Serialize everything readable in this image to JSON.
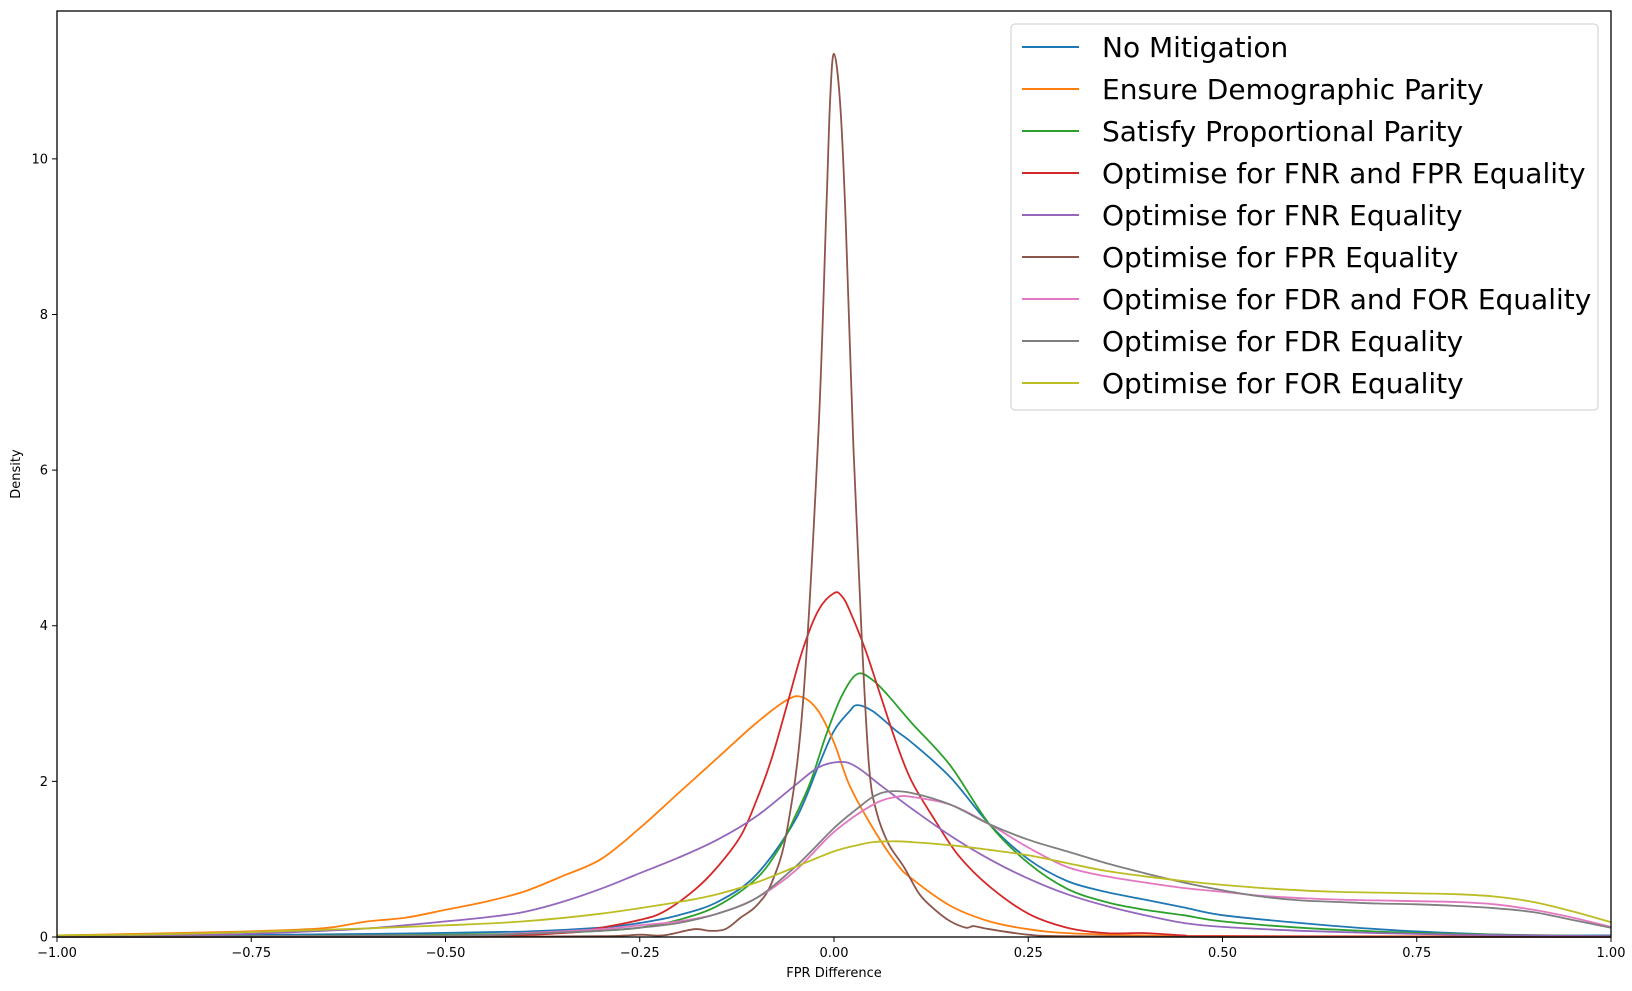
{
  "chart_data": {
    "type": "line",
    "title": "",
    "xlabel": "FPR Difference",
    "ylabel": "Density",
    "xlim": [
      -1.0,
      1.0
    ],
    "ylim": [
      0,
      11.9
    ],
    "grid": false,
    "legend_position": "upper right",
    "x_ticks": [
      -1.0,
      -0.75,
      -0.5,
      -0.25,
      0.0,
      0.25,
      0.5,
      0.75,
      1.0
    ],
    "x_tick_labels": [
      "−1.00",
      "−0.75",
      "−0.50",
      "−0.25",
      "0.00",
      "0.25",
      "0.50",
      "0.75",
      "1.00"
    ],
    "y_ticks": [
      0,
      2,
      4,
      6,
      8,
      10
    ],
    "y_tick_labels": [
      "0",
      "2",
      "4",
      "6",
      "8",
      "10"
    ],
    "series": [
      {
        "name": "No Mitigation",
        "color": "#1f77b4",
        "points": [
          [
            -1,
            0.01
          ],
          [
            -0.8,
            0.02
          ],
          [
            -0.6,
            0.04
          ],
          [
            -0.4,
            0.07
          ],
          [
            -0.3,
            0.12
          ],
          [
            -0.25,
            0.18
          ],
          [
            -0.2,
            0.28
          ],
          [
            -0.15,
            0.45
          ],
          [
            -0.1,
            0.8
          ],
          [
            -0.05,
            1.5
          ],
          [
            -0.02,
            2.2
          ],
          [
            0,
            2.65
          ],
          [
            0.02,
            2.9
          ],
          [
            0.03,
            2.98
          ],
          [
            0.05,
            2.9
          ],
          [
            0.08,
            2.65
          ],
          [
            0.1,
            2.5
          ],
          [
            0.15,
            2.05
          ],
          [
            0.2,
            1.45
          ],
          [
            0.25,
            1.0
          ],
          [
            0.3,
            0.72
          ],
          [
            0.35,
            0.58
          ],
          [
            0.4,
            0.48
          ],
          [
            0.45,
            0.38
          ],
          [
            0.5,
            0.28
          ],
          [
            0.6,
            0.18
          ],
          [
            0.7,
            0.1
          ],
          [
            0.8,
            0.05
          ],
          [
            0.9,
            0.02
          ],
          [
            1,
            0.02
          ]
        ]
      },
      {
        "name": "Ensure Demographic Parity",
        "color": "#ff7f0e",
        "points": [
          [
            -1,
            0.02
          ],
          [
            -0.9,
            0.04
          ],
          [
            -0.8,
            0.06
          ],
          [
            -0.7,
            0.09
          ],
          [
            -0.65,
            0.12
          ],
          [
            -0.6,
            0.2
          ],
          [
            -0.55,
            0.25
          ],
          [
            -0.5,
            0.35
          ],
          [
            -0.45,
            0.45
          ],
          [
            -0.4,
            0.58
          ],
          [
            -0.35,
            0.78
          ],
          [
            -0.3,
            1.0
          ],
          [
            -0.25,
            1.4
          ],
          [
            -0.2,
            1.85
          ],
          [
            -0.15,
            2.3
          ],
          [
            -0.1,
            2.75
          ],
          [
            -0.06,
            3.05
          ],
          [
            -0.04,
            3.08
          ],
          [
            -0.02,
            2.9
          ],
          [
            0,
            2.5
          ],
          [
            0.02,
            1.95
          ],
          [
            0.05,
            1.4
          ],
          [
            0.08,
            0.95
          ],
          [
            0.1,
            0.75
          ],
          [
            0.15,
            0.4
          ],
          [
            0.2,
            0.2
          ],
          [
            0.25,
            0.1
          ],
          [
            0.3,
            0.05
          ],
          [
            0.4,
            0.02
          ],
          [
            0.5,
            0.01
          ],
          [
            1,
            0.01
          ]
        ]
      },
      {
        "name": "Satisfy Proportional Parity",
        "color": "#2ca02c",
        "points": [
          [
            -1,
            0.0
          ],
          [
            -0.6,
            0.02
          ],
          [
            -0.4,
            0.04
          ],
          [
            -0.3,
            0.08
          ],
          [
            -0.25,
            0.12
          ],
          [
            -0.2,
            0.22
          ],
          [
            -0.15,
            0.4
          ],
          [
            -0.1,
            0.75
          ],
          [
            -0.07,
            1.15
          ],
          [
            -0.05,
            1.55
          ],
          [
            -0.03,
            2.0
          ],
          [
            -0.01,
            2.6
          ],
          [
            0.01,
            3.1
          ],
          [
            0.03,
            3.38
          ],
          [
            0.05,
            3.3
          ],
          [
            0.07,
            3.1
          ],
          [
            0.1,
            2.75
          ],
          [
            0.15,
            2.2
          ],
          [
            0.2,
            1.45
          ],
          [
            0.25,
            0.95
          ],
          [
            0.3,
            0.62
          ],
          [
            0.35,
            0.45
          ],
          [
            0.4,
            0.35
          ],
          [
            0.45,
            0.28
          ],
          [
            0.5,
            0.2
          ],
          [
            0.6,
            0.12
          ],
          [
            0.7,
            0.07
          ],
          [
            0.8,
            0.04
          ],
          [
            1,
            0.01
          ]
        ]
      },
      {
        "name": "Optimise for FNR and FPR Equality",
        "color": "#d62728",
        "points": [
          [
            -1,
            0.0
          ],
          [
            -0.5,
            0.01
          ],
          [
            -0.35,
            0.05
          ],
          [
            -0.3,
            0.12
          ],
          [
            -0.25,
            0.22
          ],
          [
            -0.22,
            0.32
          ],
          [
            -0.18,
            0.6
          ],
          [
            -0.15,
            0.9
          ],
          [
            -0.12,
            1.3
          ],
          [
            -0.1,
            1.75
          ],
          [
            -0.08,
            2.3
          ],
          [
            -0.06,
            3.0
          ],
          [
            -0.04,
            3.7
          ],
          [
            -0.02,
            4.2
          ],
          [
            0,
            4.42
          ],
          [
            0.01,
            4.38
          ],
          [
            0.02,
            4.2
          ],
          [
            0.04,
            3.7
          ],
          [
            0.06,
            3.1
          ],
          [
            0.08,
            2.5
          ],
          [
            0.1,
            2.0
          ],
          [
            0.13,
            1.5
          ],
          [
            0.16,
            1.05
          ],
          [
            0.2,
            0.65
          ],
          [
            0.25,
            0.3
          ],
          [
            0.3,
            0.12
          ],
          [
            0.35,
            0.05
          ],
          [
            0.4,
            0.05
          ],
          [
            0.45,
            0.02
          ],
          [
            0.5,
            0.01
          ],
          [
            1,
            0.0
          ]
        ]
      },
      {
        "name": "Optimise for FNR Equality",
        "color": "#9467bd",
        "points": [
          [
            -1,
            0.01
          ],
          [
            -0.8,
            0.03
          ],
          [
            -0.7,
            0.06
          ],
          [
            -0.6,
            0.11
          ],
          [
            -0.5,
            0.2
          ],
          [
            -0.45,
            0.25
          ],
          [
            -0.4,
            0.32
          ],
          [
            -0.35,
            0.45
          ],
          [
            -0.3,
            0.62
          ],
          [
            -0.25,
            0.82
          ],
          [
            -0.2,
            1.02
          ],
          [
            -0.15,
            1.25
          ],
          [
            -0.1,
            1.55
          ],
          [
            -0.05,
            1.95
          ],
          [
            -0.02,
            2.18
          ],
          [
            0.01,
            2.25
          ],
          [
            0.03,
            2.18
          ],
          [
            0.06,
            1.95
          ],
          [
            0.1,
            1.65
          ],
          [
            0.15,
            1.3
          ],
          [
            0.2,
            1.0
          ],
          [
            0.25,
            0.75
          ],
          [
            0.3,
            0.55
          ],
          [
            0.35,
            0.4
          ],
          [
            0.4,
            0.28
          ],
          [
            0.45,
            0.18
          ],
          [
            0.5,
            0.13
          ],
          [
            0.6,
            0.08
          ],
          [
            0.7,
            0.05
          ],
          [
            0.8,
            0.03
          ],
          [
            0.9,
            0.02
          ],
          [
            1,
            0.01
          ]
        ]
      },
      {
        "name": "Optimise for FPR Equality",
        "color": "#8c564b",
        "points": [
          [
            -1,
            0.0
          ],
          [
            -0.5,
            0.0
          ],
          [
            -0.3,
            0.01
          ],
          [
            -0.25,
            0.03
          ],
          [
            -0.22,
            0.02
          ],
          [
            -0.18,
            0.1
          ],
          [
            -0.16,
            0.08
          ],
          [
            -0.14,
            0.1
          ],
          [
            -0.12,
            0.25
          ],
          [
            -0.1,
            0.4
          ],
          [
            -0.08,
            0.7
          ],
          [
            -0.06,
            1.4
          ],
          [
            -0.04,
            3.0
          ],
          [
            -0.02,
            6.5
          ],
          [
            -0.01,
            9.3
          ],
          [
            -0.005,
            10.75
          ],
          [
            0,
            11.35
          ],
          [
            0.008,
            10.7
          ],
          [
            0.015,
            9.2
          ],
          [
            0.025,
            6.3
          ],
          [
            0.035,
            4.0
          ],
          [
            0.045,
            2.2
          ],
          [
            0.055,
            1.6
          ],
          [
            0.07,
            1.2
          ],
          [
            0.09,
            0.9
          ],
          [
            0.11,
            0.55
          ],
          [
            0.13,
            0.35
          ],
          [
            0.15,
            0.2
          ],
          [
            0.17,
            0.12
          ],
          [
            0.18,
            0.14
          ],
          [
            0.2,
            0.1
          ],
          [
            0.25,
            0.03
          ],
          [
            0.3,
            0.01
          ],
          [
            0.5,
            0.0
          ],
          [
            1,
            0.0
          ]
        ]
      },
      {
        "name": "Optimise for FDR and FOR Equality",
        "color": "#e377c2",
        "points": [
          [
            -1,
            0.0
          ],
          [
            -0.5,
            0.02
          ],
          [
            -0.4,
            0.05
          ],
          [
            -0.3,
            0.1
          ],
          [
            -0.25,
            0.15
          ],
          [
            -0.2,
            0.2
          ],
          [
            -0.15,
            0.3
          ],
          [
            -0.1,
            0.5
          ],
          [
            -0.05,
            0.85
          ],
          [
            0,
            1.35
          ],
          [
            0.05,
            1.7
          ],
          [
            0.08,
            1.8
          ],
          [
            0.1,
            1.8
          ],
          [
            0.15,
            1.7
          ],
          [
            0.2,
            1.45
          ],
          [
            0.25,
            1.15
          ],
          [
            0.3,
            0.9
          ],
          [
            0.35,
            0.78
          ],
          [
            0.4,
            0.7
          ],
          [
            0.45,
            0.63
          ],
          [
            0.5,
            0.58
          ],
          [
            0.55,
            0.53
          ],
          [
            0.6,
            0.5
          ],
          [
            0.65,
            0.48
          ],
          [
            0.7,
            0.47
          ],
          [
            0.75,
            0.46
          ],
          [
            0.8,
            0.45
          ],
          [
            0.85,
            0.42
          ],
          [
            0.9,
            0.35
          ],
          [
            0.95,
            0.25
          ],
          [
            1,
            0.13
          ]
        ]
      },
      {
        "name": "Optimise for FDR Equality",
        "color": "#7f7f7f",
        "points": [
          [
            -1,
            0.0
          ],
          [
            -0.5,
            0.02
          ],
          [
            -0.4,
            0.04
          ],
          [
            -0.3,
            0.08
          ],
          [
            -0.25,
            0.12
          ],
          [
            -0.2,
            0.18
          ],
          [
            -0.15,
            0.3
          ],
          [
            -0.1,
            0.5
          ],
          [
            -0.05,
            0.9
          ],
          [
            0,
            1.4
          ],
          [
            0.03,
            1.65
          ],
          [
            0.05,
            1.8
          ],
          [
            0.07,
            1.87
          ],
          [
            0.1,
            1.85
          ],
          [
            0.15,
            1.7
          ],
          [
            0.2,
            1.45
          ],
          [
            0.25,
            1.25
          ],
          [
            0.3,
            1.1
          ],
          [
            0.35,
            0.95
          ],
          [
            0.4,
            0.82
          ],
          [
            0.45,
            0.7
          ],
          [
            0.5,
            0.6
          ],
          [
            0.55,
            0.52
          ],
          [
            0.6,
            0.47
          ],
          [
            0.65,
            0.45
          ],
          [
            0.7,
            0.43
          ],
          [
            0.75,
            0.42
          ],
          [
            0.8,
            0.4
          ],
          [
            0.85,
            0.37
          ],
          [
            0.9,
            0.32
          ],
          [
            0.95,
            0.22
          ],
          [
            1,
            0.12
          ]
        ]
      },
      {
        "name": "Optimise for FOR Equality",
        "color": "#bcbd22",
        "points": [
          [
            -1,
            0.02
          ],
          [
            -0.9,
            0.03
          ],
          [
            -0.8,
            0.05
          ],
          [
            -0.7,
            0.08
          ],
          [
            -0.6,
            0.11
          ],
          [
            -0.5,
            0.15
          ],
          [
            -0.4,
            0.2
          ],
          [
            -0.3,
            0.3
          ],
          [
            -0.2,
            0.45
          ],
          [
            -0.15,
            0.55
          ],
          [
            -0.1,
            0.7
          ],
          [
            -0.05,
            0.9
          ],
          [
            0,
            1.1
          ],
          [
            0.03,
            1.18
          ],
          [
            0.05,
            1.22
          ],
          [
            0.08,
            1.23
          ],
          [
            0.1,
            1.22
          ],
          [
            0.15,
            1.18
          ],
          [
            0.2,
            1.12
          ],
          [
            0.25,
            1.05
          ],
          [
            0.3,
            0.95
          ],
          [
            0.35,
            0.85
          ],
          [
            0.4,
            0.78
          ],
          [
            0.45,
            0.72
          ],
          [
            0.5,
            0.67
          ],
          [
            0.55,
            0.63
          ],
          [
            0.6,
            0.6
          ],
          [
            0.65,
            0.58
          ],
          [
            0.7,
            0.57
          ],
          [
            0.75,
            0.56
          ],
          [
            0.8,
            0.55
          ],
          [
            0.85,
            0.52
          ],
          [
            0.9,
            0.45
          ],
          [
            0.95,
            0.33
          ],
          [
            1,
            0.19
          ]
        ]
      }
    ]
  }
}
